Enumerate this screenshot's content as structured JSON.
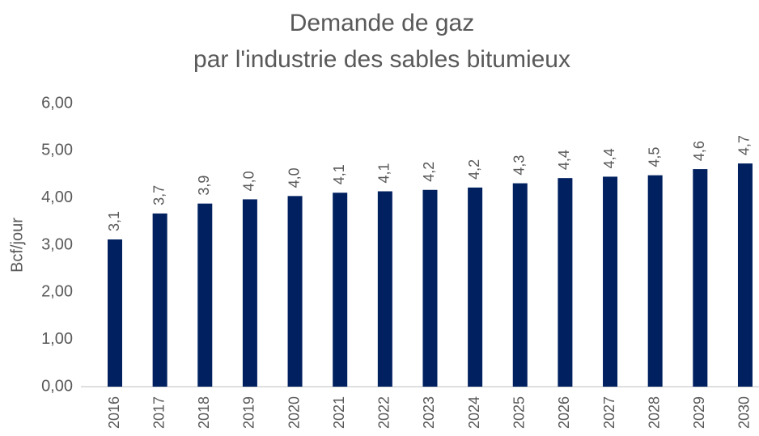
{
  "chart_data": {
    "type": "bar",
    "title": [
      "Demande de gaz",
      "par l'industrie des sables bitumieux"
    ],
    "y_label": "Bcf/jour",
    "categories": [
      "2016",
      "2017",
      "2018",
      "2019",
      "2020",
      "2021",
      "2022",
      "2023",
      "2024",
      "2025",
      "2026",
      "2027",
      "2028",
      "2029",
      "2030"
    ],
    "values": [
      3.12,
      3.67,
      3.88,
      3.97,
      4.04,
      4.11,
      4.14,
      4.17,
      4.22,
      4.31,
      4.42,
      4.45,
      4.48,
      4.61,
      4.73
    ],
    "value_labels": [
      "3,1",
      "3,7",
      "3,9",
      "4,0",
      "4,0",
      "4,1",
      "4,1",
      "4,2",
      "4,2",
      "4,3",
      "4,4",
      "4,4",
      "4,5",
      "4,6",
      "4,7"
    ],
    "color": "#002060",
    "ylim": [
      0,
      6
    ],
    "yticks": [
      {
        "value": 0,
        "label": "0,00"
      },
      {
        "value": 1,
        "label": "1,00"
      },
      {
        "value": 2,
        "label": "2,00"
      },
      {
        "value": 3,
        "label": "3,00"
      },
      {
        "value": 4,
        "label": "4,00"
      },
      {
        "value": 5,
        "label": "5,00"
      },
      {
        "value": 6,
        "label": "6,00"
      }
    ],
    "grid": false
  }
}
